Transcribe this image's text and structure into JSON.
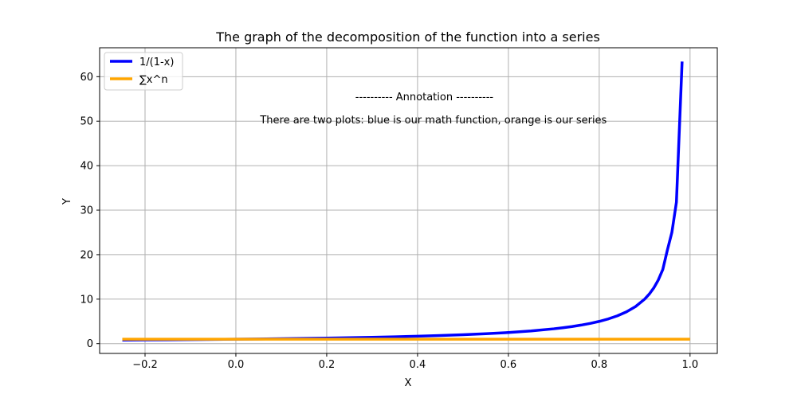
{
  "chart_data": {
    "type": "line",
    "title": "The graph of the decomposition of the function into a series",
    "xlabel": "X",
    "ylabel": "Y",
    "xlim": [
      -0.3,
      1.06
    ],
    "ylim": [
      -2.2,
      66.5
    ],
    "xticks": [
      -0.2,
      0.0,
      0.2,
      0.4,
      0.6,
      0.8,
      1.0
    ],
    "xtick_labels": [
      "−0.2",
      "0.0",
      "0.2",
      "0.4",
      "0.6",
      "0.8",
      "1.0"
    ],
    "yticks": [
      0,
      10,
      20,
      30,
      40,
      50,
      60
    ],
    "ytick_labels": [
      "0",
      "10",
      "20",
      "30",
      "40",
      "50",
      "60"
    ],
    "grid": true,
    "legend_position": "top-left",
    "series": [
      {
        "name": "1/(1-x)",
        "color": "#0000ff",
        "x": [
          -0.25,
          -0.2,
          -0.15,
          -0.1,
          -0.05,
          0.0,
          0.05,
          0.1,
          0.15,
          0.2,
          0.25,
          0.3,
          0.35,
          0.4,
          0.45,
          0.5,
          0.55,
          0.6,
          0.65,
          0.7,
          0.72,
          0.74,
          0.76,
          0.78,
          0.8,
          0.82,
          0.84,
          0.86,
          0.88,
          0.9,
          0.91,
          0.92,
          0.93,
          0.94,
          0.95,
          0.96,
          0.97,
          0.9825
        ],
        "y": [
          0.8,
          0.833,
          0.87,
          0.909,
          0.952,
          1.0,
          1.053,
          1.111,
          1.176,
          1.25,
          1.333,
          1.429,
          1.538,
          1.667,
          1.818,
          2.0,
          2.222,
          2.5,
          2.857,
          3.333,
          3.571,
          3.846,
          4.167,
          4.545,
          5.0,
          5.556,
          6.25,
          7.143,
          8.333,
          10.0,
          11.111,
          12.5,
          14.286,
          16.667,
          21.0,
          25.0,
          31.8,
          63.4
        ]
      },
      {
        "name": "∑x^n",
        "color": "#ffa500",
        "x": [
          -0.25,
          0.0,
          0.25,
          0.5,
          0.75,
          1.0
        ],
        "y": [
          1.0,
          1.0,
          1.0,
          1.0,
          1.0,
          1.0
        ]
      }
    ],
    "annotations": [
      {
        "text": "---------- Annotation ----------",
        "x": 0.415,
        "y": 55.5
      },
      {
        "text": "There are two plots: blue is our math function, orange is our series",
        "x": 0.435,
        "y": 50.3
      }
    ]
  }
}
